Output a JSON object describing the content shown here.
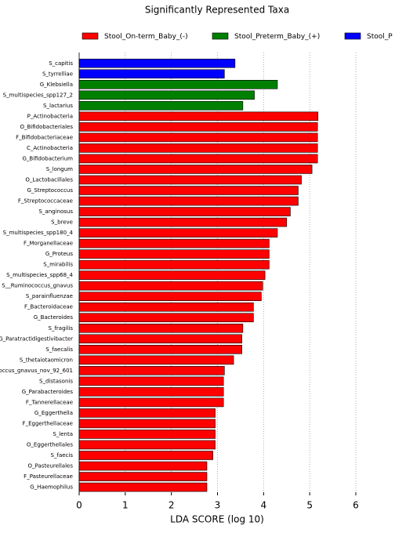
{
  "chart_data": {
    "type": "barh",
    "title": "Significantly Represented Taxa",
    "xlabel": "LDA SCORE (log 10)",
    "categories": [
      "S_capitis",
      "S_tyrrelliae",
      "G_Klebsiella",
      "S_multispecies_spp127_2",
      "S_lactarius",
      "P_Actinobacteria",
      "O_Bifidobacteriales",
      "F_Bifidobacteriaceae",
      "C_Actinobacteria",
      "G_Bifidobacterium",
      "S_longum",
      "O_Lactobacillales",
      "G_Streptococcus",
      "F_Streptococcaceae",
      "S_anginosus",
      "S_breve",
      "S_multispecies_spp180_4",
      "F_Morganellaceae",
      "G_Proteus",
      "S_mirabilis",
      "S_multispecies_spp68_4",
      "S__Ruminococcus_gnavus",
      "S_parainfluenzae",
      "F_Bacteroidaceae",
      "G_Bacteroides",
      "S_fragilis",
      "G_Paratractidigestivibacter",
      "S_faecalis",
      "S_thetaiotaomicron",
      "occus_gnavus_nov_92_601",
      "S_distasonis",
      "G_Parabacteroides",
      "F_Tannerellaceae",
      "G_Eggerthella",
      "F_Eggerthellaceae",
      "S_lenta",
      "O_Eggerthellales",
      "S_faecis",
      "O_Pasteurellales",
      "F_Pasteurellaceae",
      "G_Haemophilus"
    ],
    "series": [
      {
        "name": "Stool_On-term_Baby_(-)",
        "color": "#ff0000",
        "values": [
          null,
          null,
          null,
          null,
          null,
          5.18,
          5.17,
          5.17,
          5.17,
          5.17,
          5.05,
          4.82,
          4.75,
          4.75,
          4.58,
          4.5,
          4.3,
          4.12,
          4.12,
          4.12,
          4.03,
          3.98,
          3.95,
          3.78,
          3.78,
          3.55,
          3.53,
          3.53,
          3.35,
          3.15,
          3.13,
          3.13,
          3.13,
          2.95,
          2.95,
          2.95,
          2.95,
          2.9,
          2.77,
          2.77,
          2.77
        ]
      },
      {
        "name": "Stool_Preterm_Baby_(+)",
        "color": "#008000",
        "values": [
          null,
          null,
          4.3,
          3.8,
          3.55,
          null,
          null,
          null,
          null,
          null,
          null,
          null,
          null,
          null,
          null,
          null,
          null,
          null,
          null,
          null,
          null,
          null,
          null,
          null,
          null,
          null,
          null,
          null,
          null,
          null,
          null,
          null,
          null,
          null,
          null,
          null,
          null,
          null,
          null,
          null,
          null
        ]
      },
      {
        "name": "Stool_P",
        "color": "#0000ff",
        "values": [
          3.38,
          3.15,
          null,
          null,
          null,
          null,
          null,
          null,
          null,
          null,
          null,
          null,
          null,
          null,
          null,
          null,
          null,
          null,
          null,
          null,
          null,
          null,
          null,
          null,
          null,
          null,
          null,
          null,
          null,
          null,
          null,
          null,
          null,
          null,
          null,
          null,
          null,
          null,
          null,
          null,
          null
        ]
      }
    ],
    "xlim": [
      0,
      6
    ],
    "xticks": [
      0,
      1,
      2,
      3,
      4,
      5,
      6
    ],
    "grid": true
  }
}
